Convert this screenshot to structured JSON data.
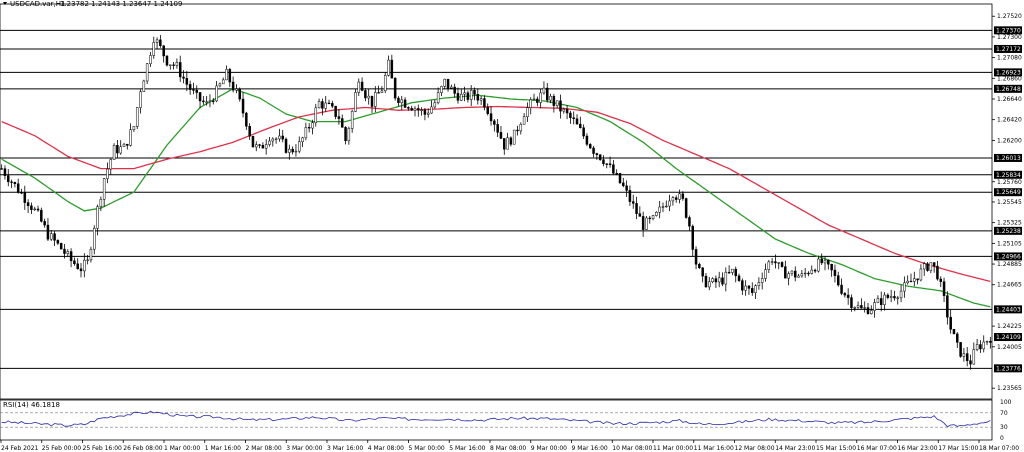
{
  "header": {
    "symbol": "USDCAD.var,H1",
    "ohlc": "1.23782 1.24143 1.23647 1.24109"
  },
  "rsi": {
    "label": "RSI(14) 46.1818",
    "levels": [
      100,
      70,
      30,
      0
    ],
    "value": 46.1818
  },
  "colors": {
    "ma_fast": "#2a9d2a",
    "ma_slow": "#e0304a",
    "candle": "#000000",
    "rsi_line": "#2a2aaa"
  },
  "chart_data": {
    "type": "candlestick",
    "title": "",
    "ylim": [
      1.2345,
      1.2765
    ],
    "y_ticks": [
      "1.27520",
      "1.27300",
      "1.27080",
      "1.26860",
      "1.26640",
      "1.26420",
      "1.26200",
      "1.25760",
      "1.25545",
      "1.25325",
      "1.25105",
      "1.24885",
      "1.24665",
      "1.24225",
      "1.24005",
      "1.23565"
    ],
    "x_ticks": [
      "24 Feb 2021",
      "25 Feb 00:00",
      "25 Feb 16:00",
      "26 Feb 08:00",
      "1 Mar 00:00",
      "1 Mar 16:00",
      "2 Mar 08:00",
      "3 Mar 00:00",
      "3 Mar 16:00",
      "4 Mar 08:00",
      "5 Mar 00:00",
      "5 Mar 16:00",
      "8 Mar 08:00",
      "9 Mar 00:00",
      "9 Mar 16:00",
      "10 Mar 08:00",
      "11 Mar 00:00",
      "11 Mar 16:00",
      "12 Mar 08:00",
      "14 Mar 23:00",
      "15 Mar 15:00",
      "16 Mar 07:00",
      "16 Mar 23:00",
      "17 Mar 15:00",
      "18 Mar 07:00"
    ],
    "horizontal_levels": [
      1.2737,
      1.27172,
      1.26923,
      1.26748,
      1.26013,
      1.25834,
      1.25649,
      1.25238,
      1.24966,
      1.24403,
      1.23776
    ],
    "current_price": 1.24109,
    "close_path": [
      [
        0,
        1.259
      ],
      [
        4,
        1.2572
      ],
      [
        8,
        1.2555
      ],
      [
        11,
        1.254
      ],
      [
        14,
        1.252
      ],
      [
        18,
        1.2505
      ],
      [
        21,
        1.2492
      ],
      [
        24,
        1.2484
      ],
      [
        26,
        1.249
      ],
      [
        28,
        1.253
      ],
      [
        31,
        1.258
      ],
      [
        34,
        1.261
      ],
      [
        37,
        1.2612
      ],
      [
        40,
        1.2635
      ],
      [
        42,
        1.2675
      ],
      [
        44,
        1.27
      ],
      [
        46,
        1.273
      ],
      [
        48,
        1.2718
      ],
      [
        50,
        1.2705
      ],
      [
        53,
        1.2698
      ],
      [
        56,
        1.268
      ],
      [
        59,
        1.2665
      ],
      [
        62,
        1.2658
      ],
      [
        65,
        1.2672
      ],
      [
        68,
        1.269
      ],
      [
        71,
        1.267
      ],
      [
        74,
        1.264
      ],
      [
        76,
        1.2615
      ],
      [
        78,
        1.261
      ],
      [
        81,
        1.2625
      ],
      [
        84,
        1.262
      ],
      [
        87,
        1.2608
      ],
      [
        90,
        1.2615
      ],
      [
        93,
        1.2635
      ],
      [
        96,
        1.266
      ],
      [
        99,
        1.2655
      ],
      [
        102,
        1.2645
      ],
      [
        104,
        1.262
      ],
      [
        106,
        1.265
      ],
      [
        108,
        1.2688
      ],
      [
        110,
        1.267
      ],
      [
        112,
        1.266
      ],
      [
        115,
        1.2675
      ],
      [
        117,
        1.27
      ],
      [
        119,
        1.2668
      ],
      [
        122,
        1.266
      ],
      [
        125,
        1.2655
      ],
      [
        128,
        1.2648
      ],
      [
        131,
        1.266
      ],
      [
        134,
        1.2682
      ],
      [
        137,
        1.267
      ],
      [
        140,
        1.2665
      ],
      [
        143,
        1.267
      ],
      [
        146,
        1.266
      ],
      [
        149,
        1.264
      ],
      [
        152,
        1.2615
      ],
      [
        155,
        1.2625
      ],
      [
        158,
        1.265
      ],
      [
        161,
        1.2662
      ],
      [
        164,
        1.267
      ],
      [
        167,
        1.266
      ],
      [
        170,
        1.265
      ],
      [
        173,
        1.264
      ],
      [
        176,
        1.2625
      ],
      [
        179,
        1.261
      ],
      [
        182,
        1.26
      ],
      [
        185,
        1.2585
      ],
      [
        188,
        1.257
      ],
      [
        191,
        1.255
      ],
      [
        194,
        1.253
      ],
      [
        197,
        1.2535
      ],
      [
        200,
        1.255
      ],
      [
        203,
        1.2565
      ],
      [
        206,
        1.2555
      ],
      [
        208,
        1.253
      ],
      [
        210,
        1.249
      ],
      [
        212,
        1.247
      ],
      [
        215,
        1.2468
      ],
      [
        218,
        1.2472
      ],
      [
        221,
        1.248
      ],
      [
        224,
        1.2465
      ],
      [
        227,
        1.2458
      ],
      [
        230,
        1.2478
      ],
      [
        233,
        1.2495
      ],
      [
        236,
        1.248
      ],
      [
        239,
        1.2478
      ],
      [
        242,
        1.2475
      ],
      [
        245,
        1.2485
      ],
      [
        248,
        1.249
      ],
      [
        251,
        1.248
      ],
      [
        254,
        1.2462
      ],
      [
        257,
        1.2448
      ],
      [
        260,
        1.244
      ],
      [
        263,
        1.2442
      ],
      [
        266,
        1.245
      ],
      [
        269,
        1.2455
      ],
      [
        272,
        1.246
      ],
      [
        275,
        1.247
      ],
      [
        278,
        1.248
      ],
      [
        281,
        1.249
      ],
      [
        283,
        1.2478
      ],
      [
        285,
        1.245
      ],
      [
        287,
        1.242
      ],
      [
        289,
        1.24
      ],
      [
        291,
        1.239
      ],
      [
        293,
        1.2385
      ],
      [
        295,
        1.24
      ],
      [
        297,
        1.2405
      ],
      [
        299,
        1.2411
      ]
    ],
    "series": [
      {
        "name": "",
        "style": "fast-ma",
        "values": [
          [
            0,
            1.26
          ],
          [
            10,
            1.258
          ],
          [
            20,
            1.2555
          ],
          [
            25,
            1.2545
          ],
          [
            30,
            1.2548
          ],
          [
            40,
            1.2565
          ],
          [
            50,
            1.2615
          ],
          [
            60,
            1.2655
          ],
          [
            70,
            1.2675
          ],
          [
            78,
            1.2665
          ],
          [
            86,
            1.2648
          ],
          [
            94,
            1.264
          ],
          [
            104,
            1.264
          ],
          [
            114,
            1.265
          ],
          [
            124,
            1.266
          ],
          [
            134,
            1.2665
          ],
          [
            144,
            1.2668
          ],
          [
            154,
            1.2664
          ],
          [
            164,
            1.2662
          ],
          [
            174,
            1.2655
          ],
          [
            184,
            1.264
          ],
          [
            194,
            1.2618
          ],
          [
            204,
            1.259
          ],
          [
            214,
            1.2565
          ],
          [
            224,
            1.254
          ],
          [
            234,
            1.2515
          ],
          [
            244,
            1.25
          ],
          [
            254,
            1.2488
          ],
          [
            264,
            1.2473
          ],
          [
            274,
            1.2465
          ],
          [
            284,
            1.246
          ],
          [
            294,
            1.2447
          ],
          [
            299,
            1.2443
          ]
        ]
      },
      {
        "name": "",
        "style": "slow-ma",
        "values": [
          [
            0,
            1.264
          ],
          [
            10,
            1.2625
          ],
          [
            20,
            1.2603
          ],
          [
            30,
            1.259
          ],
          [
            40,
            1.259
          ],
          [
            50,
            1.26
          ],
          [
            60,
            1.2608
          ],
          [
            70,
            1.2618
          ],
          [
            80,
            1.2632
          ],
          [
            90,
            1.2645
          ],
          [
            100,
            1.2652
          ],
          [
            110,
            1.2655
          ],
          [
            120,
            1.2652
          ],
          [
            130,
            1.2653
          ],
          [
            140,
            1.2655
          ],
          [
            150,
            1.2656
          ],
          [
            160,
            1.2655
          ],
          [
            170,
            1.2654
          ],
          [
            180,
            1.265
          ],
          [
            190,
            1.2638
          ],
          [
            200,
            1.262
          ],
          [
            210,
            1.2605
          ],
          [
            220,
            1.259
          ],
          [
            230,
            1.257
          ],
          [
            240,
            1.255
          ],
          [
            250,
            1.253
          ],
          [
            260,
            1.2515
          ],
          [
            270,
            1.25
          ],
          [
            280,
            1.2488
          ],
          [
            290,
            1.2478
          ],
          [
            299,
            1.247
          ]
        ]
      }
    ],
    "rsi_values": [
      [
        0,
        45
      ],
      [
        10,
        40
      ],
      [
        20,
        35
      ],
      [
        25,
        38
      ],
      [
        30,
        55
      ],
      [
        40,
        68
      ],
      [
        46,
        72
      ],
      [
        55,
        60
      ],
      [
        65,
        58
      ],
      [
        75,
        50
      ],
      [
        85,
        52
      ],
      [
        95,
        58
      ],
      [
        105,
        48
      ],
      [
        115,
        55
      ],
      [
        125,
        52
      ],
      [
        135,
        53
      ],
      [
        145,
        50
      ],
      [
        155,
        55
      ],
      [
        165,
        54
      ],
      [
        175,
        47
      ],
      [
        185,
        40
      ],
      [
        195,
        42
      ],
      [
        205,
        48
      ],
      [
        212,
        38
      ],
      [
        222,
        43
      ],
      [
        232,
        52
      ],
      [
        242,
        48
      ],
      [
        252,
        42
      ],
      [
        262,
        44
      ],
      [
        272,
        52
      ],
      [
        282,
        60
      ],
      [
        286,
        35
      ],
      [
        290,
        33
      ],
      [
        294,
        40
      ],
      [
        299,
        46
      ]
    ]
  }
}
